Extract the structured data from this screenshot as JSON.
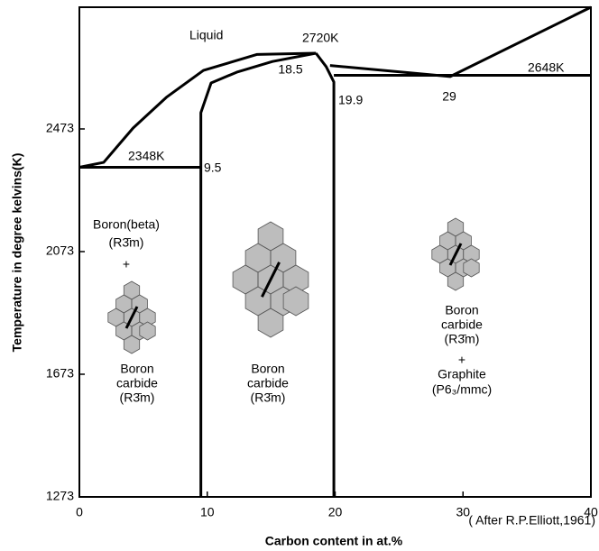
{
  "chart_data": {
    "type": "line",
    "xlabel": "Carbon content in at.%",
    "ylabel": "Temperature in degree kelvins(K)",
    "note": "( After R.P.Elliott,1961)",
    "xlim": [
      0,
      40
    ],
    "xticks": [
      0,
      10,
      20,
      30,
      40
    ],
    "ylim": [
      1273,
      2870
    ],
    "yticks": [
      1273,
      1673,
      2073,
      2473
    ],
    "series": [
      {
        "color": "#000000",
        "x": [
          0,
          1.9,
          4.2,
          6.8,
          9.7,
          13.9,
          18.5
        ],
        "y": [
          2348,
          2364,
          2476,
          2576,
          2664,
          2716,
          2720
        ]
      },
      {
        "color": "#000000",
        "x": [
          9.5,
          9.5,
          10.3,
          12.3,
          15.1,
          18.5
        ],
        "y": [
          1273,
          2526,
          2623,
          2658,
          2693,
          2720
        ]
      },
      {
        "color": "#000000",
        "x": [
          18.5,
          19.3,
          19.9,
          19.9
        ],
        "y": [
          2720,
          2676,
          2626,
          1273
        ]
      },
      {
        "color": "#000000",
        "x": [
          0,
          9.5
        ],
        "y": [
          2348,
          2348
        ]
      },
      {
        "color": "#000000",
        "x": [
          19.9,
          40
        ],
        "y": [
          2648,
          2648
        ]
      },
      {
        "color": "#000000",
        "x": [
          19.6,
          29,
          40
        ],
        "y": [
          2680,
          2644,
          2870
        ]
      }
    ],
    "annotations": [
      "Liquid",
      "2720K",
      "18.5",
      "19.9",
      "2648K",
      "29",
      "2348K",
      "9.5"
    ],
    "region_labels": [
      [
        "Boron(beta)",
        "(R3̄m)",
        "+"
      ],
      [
        "Boron",
        "carbide",
        "(R3̄m)"
      ],
      [
        "Boron",
        "carbide",
        "(R3̄m)"
      ],
      [
        "Boron",
        "carbide",
        "(R3̄m)",
        "+",
        "Graphite",
        "(P6₃/mmc)"
      ]
    ]
  }
}
